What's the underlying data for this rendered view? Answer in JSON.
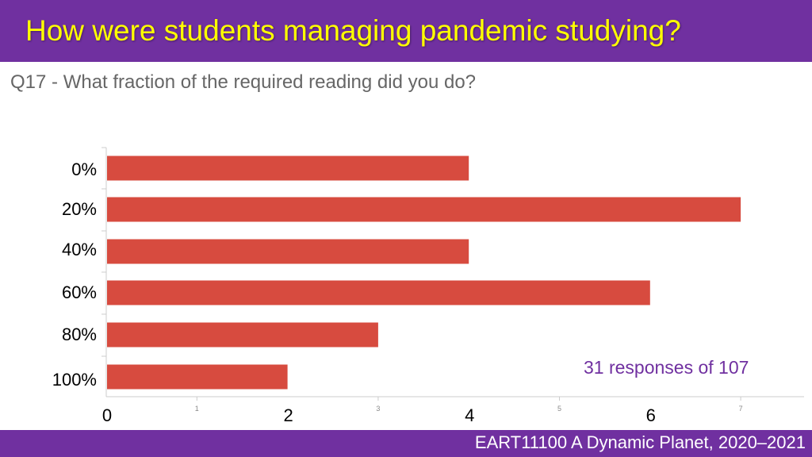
{
  "slide": {
    "title": "How were students managing pandemic studying?",
    "question": "Q17 - What fraction of the required reading did you do?",
    "responses_note": "31 responses of 107",
    "footer": "EART11100 A Dynamic Planet, 2020–2021"
  },
  "colors": {
    "bar": "#d74b3f",
    "accent": "#7030a0",
    "title": "#ffff00"
  },
  "chart_data": {
    "type": "bar",
    "orientation": "horizontal",
    "categories": [
      "0%",
      "20%",
      "40%",
      "60%",
      "80%",
      "100%"
    ],
    "values": [
      4,
      7,
      4,
      6,
      3,
      2
    ],
    "xlim": [
      0,
      7
    ],
    "xticks_small": [
      "1",
      "3",
      "5",
      "7"
    ],
    "xticks_large": [
      "0",
      "2",
      "4",
      "6"
    ],
    "xticks_small_values": [
      1,
      3,
      5,
      7
    ],
    "xticks_large_values": [
      0,
      2,
      4,
      6
    ]
  }
}
